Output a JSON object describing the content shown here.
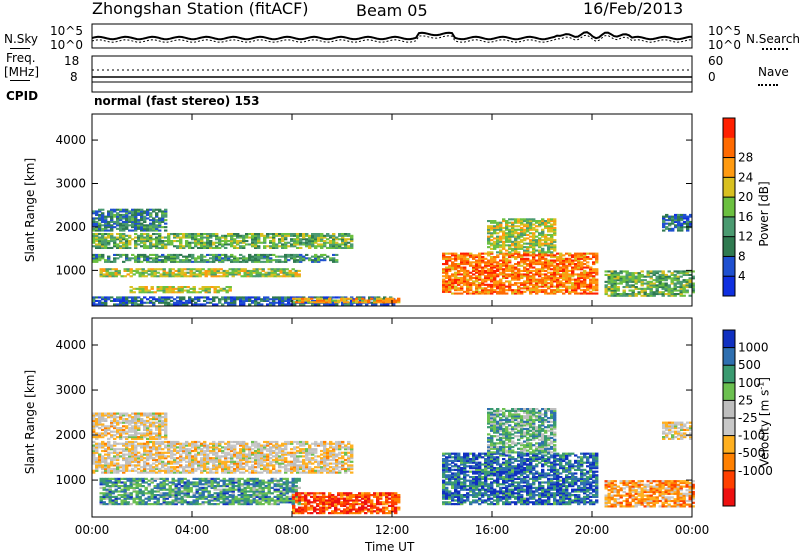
{
  "header": {
    "station": "Zhongshan Station (fitACF)",
    "beam": "Beam 05",
    "date": "16/Feb/2013"
  },
  "top_panels": {
    "nsky_label": "N.Sky",
    "nsky_ticks": [
      "10^5",
      "10^0"
    ],
    "nsearch_label": "N.Search",
    "nsearch_ticks": [
      "10^5",
      "10^0"
    ],
    "freq_label_line1": "Freq.",
    "freq_label_line2": "[MHz]",
    "freq_ticks": [
      "18",
      "8"
    ],
    "nave_label": "Nave",
    "nave_ticks": [
      "60",
      "0"
    ],
    "cpid_label": "CPID",
    "cpid_text": "normal (fast stereo) 153"
  },
  "colors": {
    "power_scale": [
      "#1030e0",
      "#1f50d0",
      "#2f7a50",
      "#4a9a70",
      "#6bc040",
      "#d8c020",
      "#ff9a10",
      "#ff6a00",
      "#ff2000"
    ],
    "velocity_scale": [
      "#1030c0",
      "#2e6fb0",
      "#3a9a70",
      "#6cc050",
      "#bebebe",
      "#c8c8c8",
      "#ffb020",
      "#ff8000",
      "#ff4000",
      "#ee1010"
    ]
  },
  "chart_data": [
    {
      "type": "heatmap",
      "title": "Power",
      "ylabel": "Slant Range [km]",
      "xlabel": "Time UT",
      "x_ticks": [
        "00:00",
        "04:00",
        "08:00",
        "12:00",
        "16:00",
        "20:00",
        "00:00"
      ],
      "y_ticks": [
        1000,
        2000,
        3000,
        4000
      ],
      "ylim": [
        180,
        4600
      ],
      "xlim_hours": [
        0,
        24
      ],
      "colorbar_label": "Power [dB]",
      "colorbar_ticks": [
        "4",
        "8",
        "12",
        "16",
        "20",
        "24",
        "28"
      ],
      "bands": [
        {
          "t0": 0.0,
          "t1": 10.4,
          "r0": 1500,
          "r1": 1850,
          "level": 0.45
        },
        {
          "t0": 0.0,
          "t1": 9.8,
          "r0": 1180,
          "r1": 1350,
          "level": 0.35
        },
        {
          "t0": 0.3,
          "t1": 8.3,
          "r0": 850,
          "r1": 1050,
          "level": 0.55
        },
        {
          "t0": 1.5,
          "t1": 5.5,
          "r0": 480,
          "r1": 620,
          "level": 0.6
        },
        {
          "t0": 0.0,
          "t1": 12.0,
          "r0": 200,
          "r1": 400,
          "level": 0.2
        },
        {
          "t0": 8.0,
          "t1": 12.2,
          "r0": 250,
          "r1": 350,
          "level": 0.7
        },
        {
          "t0": 0.0,
          "t1": 3.0,
          "r0": 1900,
          "r1": 2400,
          "level": 0.3
        },
        {
          "t0": 14.0,
          "t1": 20.2,
          "r0": 450,
          "r1": 1400,
          "level": 0.8
        },
        {
          "t0": 15.8,
          "t1": 18.5,
          "r0": 1400,
          "r1": 2200,
          "level": 0.55
        },
        {
          "t0": 20.5,
          "t1": 24.0,
          "r0": 400,
          "r1": 1000,
          "level": 0.45
        },
        {
          "t0": 22.8,
          "t1": 24.0,
          "r0": 1900,
          "r1": 2300,
          "level": 0.25
        }
      ]
    },
    {
      "type": "heatmap",
      "title": "Velocity",
      "ylabel": "Slant Range [km]",
      "xlabel": "Time UT",
      "x_ticks": [
        "00:00",
        "04:00",
        "08:00",
        "12:00",
        "16:00",
        "20:00",
        "00:00"
      ],
      "y_ticks": [
        1000,
        2000,
        3000,
        4000
      ],
      "ylim": [
        180,
        4600
      ],
      "xlim_hours": [
        0,
        24
      ],
      "colorbar_label": "Velocity [m s^-1]",
      "colorbar_ticks": [
        "1000",
        "500",
        "100",
        "25",
        "-25",
        "-100",
        "-500",
        "-1000"
      ],
      "bands": [
        {
          "t0": 0.0,
          "t1": 10.4,
          "r0": 1150,
          "r1": 1850,
          "level": 0.45
        },
        {
          "t0": 0.0,
          "t1": 3.0,
          "r0": 1900,
          "r1": 2500,
          "level": 0.45
        },
        {
          "t0": 0.3,
          "t1": 8.3,
          "r0": 450,
          "r1": 1050,
          "level": 0.75
        },
        {
          "t0": 8.0,
          "t1": 12.2,
          "r0": 250,
          "r1": 700,
          "level": 0.15
        },
        {
          "t0": 14.0,
          "t1": 20.2,
          "r0": 450,
          "r1": 1600,
          "level": 0.85
        },
        {
          "t0": 15.8,
          "t1": 18.5,
          "r0": 1600,
          "r1": 2600,
          "level": 0.7
        },
        {
          "t0": 20.5,
          "t1": 24.0,
          "r0": 400,
          "r1": 1000,
          "level": 0.3
        },
        {
          "t0": 22.8,
          "t1": 24.0,
          "r0": 1900,
          "r1": 2300,
          "level": 0.45
        }
      ]
    }
  ]
}
